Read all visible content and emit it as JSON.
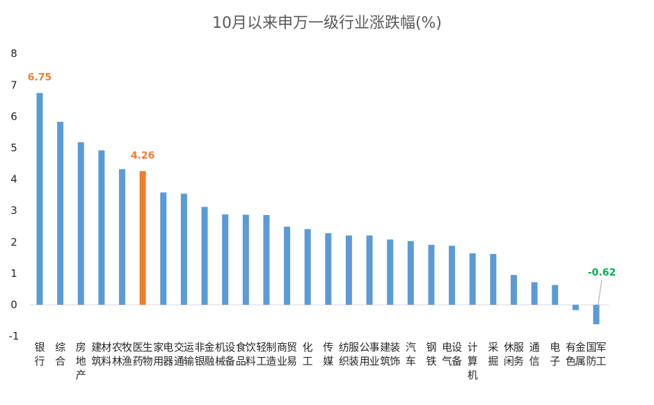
{
  "chart_data": {
    "type": "bar",
    "title": "10月以来申万一级行业涨跌幅(%)",
    "xlabel": "",
    "ylabel": "",
    "ylim": [
      -1,
      8
    ],
    "yticks": [
      -1,
      0,
      1,
      2,
      3,
      4,
      5,
      6,
      7,
      8
    ],
    "grid": false,
    "legend": "none",
    "categories": [
      "银行",
      "综合",
      "房地产",
      "建筑材料",
      "农林牧渔",
      "医药生物",
      "家用电器",
      "交通运输",
      "非银金融",
      "机械设备",
      "食品饮料",
      "轻工制造",
      "商业贸易",
      "化工",
      "传媒",
      "纺织服装",
      "公用事业",
      "建筑装饰",
      "汽车",
      "钢铁",
      "电气设备",
      "计算机",
      "采掘",
      "休闲服务",
      "通信",
      "电子",
      "有色金属",
      "国防军工"
    ],
    "values": [
      6.75,
      5.83,
      5.18,
      4.92,
      4.32,
      4.26,
      3.58,
      3.54,
      3.12,
      2.88,
      2.87,
      2.86,
      2.49,
      2.41,
      2.28,
      2.21,
      2.21,
      2.08,
      2.03,
      1.91,
      1.88,
      1.64,
      1.62,
      0.95,
      0.72,
      0.63,
      -0.17,
      -0.62
    ],
    "colors": {
      "default": "#5b9bd5",
      "highlight": "#ed7d31",
      "negative_label": "#00b050"
    },
    "highlight_index": 5,
    "annotations": [
      {
        "index": 0,
        "text": "6.75",
        "color": "#ed7d31"
      },
      {
        "index": 5,
        "text": "4.26",
        "color": "#ed7d31"
      },
      {
        "index": 27,
        "text": "-0.62",
        "color": "#00b050"
      }
    ]
  }
}
